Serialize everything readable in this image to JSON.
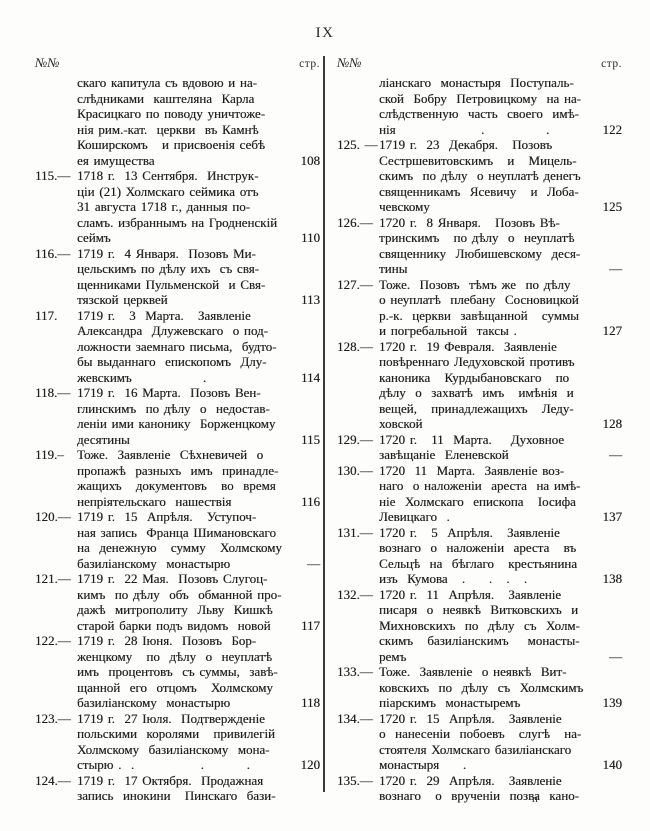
{
  "page": {
    "folio": "IX",
    "signature_mark": "п",
    "ink_color": "#1e1d1b",
    "paper_color": "#fdfdfb"
  },
  "columns": [
    {
      "side": "left",
      "header_no": "№№",
      "header_page": "стр.",
      "entries": [
        {
          "num": "",
          "text": "скаго капитула съ вдовою и на-\nслѣдниками  каштеляна  Карла\nКрасицкаго по поводу уничтоже-\nнія рим.-кат.  церкви  въ Камнѣ\nКоширскомъ   и присвоенія себѣ\nея имущества",
          "page": "108"
        },
        {
          "num": "115.—",
          "text": "1718 г.  13 Сентября.  Инструк-\nціи (21) Холмскаго сеймика отъ\n31 августа 1718 г., данныя по-\nсламъ. избраннымъ на Гродненскій\nсеймъ",
          "page": "110"
        },
        {
          "num": "116.—",
          "text": "1719 г.  4 Января.  Позовъ Ми-\nцельскимъ по дѣлу ихъ  съ свя-\nщенниками Пульменской  и Свя-\nтязской церквей",
          "page": "113"
        },
        {
          "num": "117.",
          "text": "1719 г.   3  Марта.   Заявленіе\nАлександра  Длужевскаго  о под-\nложности заемнаго письма,  будто-\nбы выданнаго  епископомъ  Длу-\nжевскимъ               .",
          "page": "114"
        },
        {
          "num": "118.—",
          "text": "1719 г.  16 Марта.  Позовъ Вен-\nглинскимъ  по дѣлу  о  недостав-\nленіи ими канонику  Борженцкому\nдесятины",
          "page": "115"
        },
        {
          "num": "119.–",
          "text": "Тоже.  Заявленіе  Сѣхневичей  о\nпропажѣ  разныхъ  имъ  принадле-\nжащихъ   документовъ   во  время\nнепріятельскаго  нашествія",
          "page": "116"
        },
        {
          "num": "120.—",
          "text": "1719 г.  15  Апрѣля.   Уступоч-\nная запись  Франца Шимановскаго\nна  денежную   сумму   Холмскому\nбазиліанскому  монастырю",
          "page": "—"
        },
        {
          "num": "121.—",
          "text": "1719 г.  22 Мая.  Позовъ Слугоц-\nкимъ  по дѣлу  объ  обманной про-\nдажѣ  митрополиту  Льву  Кишкѣ\nстарой барки подъ видомъ  новой",
          "page": "117"
        },
        {
          "num": "122.—",
          "text": "1719 г.  28 Іюня.  Позовъ  Бор-\nженцкому   по  дѣлу  о  неуплатѣ\nимъ  процентовъ  съ суммы,  завѣ-\nщанной  его  отцомъ   Холмскому\nбазиліанскому  монастырю",
          "page": "118"
        },
        {
          "num": "123.—",
          "text": "1719 г.  27 Іюля.  Подтвержденіе\nпольскими  королями   привилегій\nХолмскому  базиліанскому  мона-\nстырю .  .              .         .",
          "page": "120"
        },
        {
          "num": "124.—",
          "text": "1719 г.  17 Октября.  Продажная\nзапись  инокини   Пинскаго  бази-",
          "page": ""
        }
      ]
    },
    {
      "side": "right",
      "header_no": "№№",
      "header_page": "стр.",
      "entries": [
        {
          "num": "",
          "text": "ліанскаго  монастыря  Поступаль-\nской  Бобру  Петровицкому  на на-\nслѣдственную  часть  своего  имѣ-\nнія                  .             .",
          "page": "122"
        },
        {
          "num": "125. —",
          "text": "1719 г.  23  Декабря.   Позовъ\nСестршевитовскимъ   и   Мицель-\nскимъ  по дѣлу  о неуплатѣ денегъ\nсвященникамъ  Ясевичу   и  Лоба-\nчевскому",
          "page": "125"
        },
        {
          "num": "126.—",
          "text": "1720 г.  8 Января.   Позовъ Вѣ-\nтринскимъ   по дѣлу  о  неуплатѣ\nсвященнику  Любишевскому  деся-\nтины",
          "page": "—"
        },
        {
          "num": "127.—",
          "text": "Тоже.  Позовъ  тѣмъ же  по дѣлу\nо неуплатѣ  плебану  Сосновицкой\nр.-к.  церкви  завѣщанной   суммы\nи погребальной  таксы .",
          "page": "127"
        },
        {
          "num": "128.—",
          "text": "1720 г.  19 Февраля.  Заявленіе\nповѣреннаго Ледуховской противъ\nканоника   Курдыбановскаго   по\nдѣлу  о  захватѣ  имъ   имѣнія  и\nвещей,   принадлежащихъ   Леду-\nховской",
          "page": "128"
        },
        {
          "num": "129.—",
          "text": "1720 г.   11  Марта.    Духовное\nзавѣщаніе  Еленевской",
          "page": "—"
        },
        {
          "num": "130.—",
          "text": "1720  11  Марта.  Заявленіе воз-\nнаго  о наложеніи  ареста  на имѣ-\nніе  Холмскаго  епископа   Іосифа\nЛевицкаго  .",
          "page": "137"
        },
        {
          "num": "131.—",
          "text": "1720 г.   5  Апрѣля.   Заявленіе\nвознаго  о  наложеніи  ареста   въ\nСельцѣ  на  бѣглаго   крестьянина\nизъ  Кумова   .     .   .   .",
          "page": "138"
        },
        {
          "num": "132.—",
          "text": "1720 г.  11  Апрѣля.   Заявленіе\nписаря  о  неявкѣ  Витковскихъ  и\nМихновскихъ  по  дѣлу  съ  Холм-\nскимъ   базиліанскимъ    монасты-\nремъ",
          "page": "—"
        },
        {
          "num": "133.—",
          "text": "Тоже.  Заявленіе  о неявкѣ  Вит-\nковскихъ  по  дѣлу  съ  Холмскимъ\nпіарскимъ  монастыремъ",
          "page": "139"
        },
        {
          "num": "134.—",
          "text": "1720 г.  15  Апрѣля.   Заявленіе\nо  нанесеніи  побоевъ   слугѣ   на-\nстоятеля Холмскаго базиліанскаго\nмонастыря     .",
          "page": "140"
        },
        {
          "num": "135.—",
          "text": "1720 г.  29  Апрѣля.   Заявленіе\nвознаго   о  врученіи  позва  кано-",
          "page": ""
        }
      ]
    }
  ]
}
